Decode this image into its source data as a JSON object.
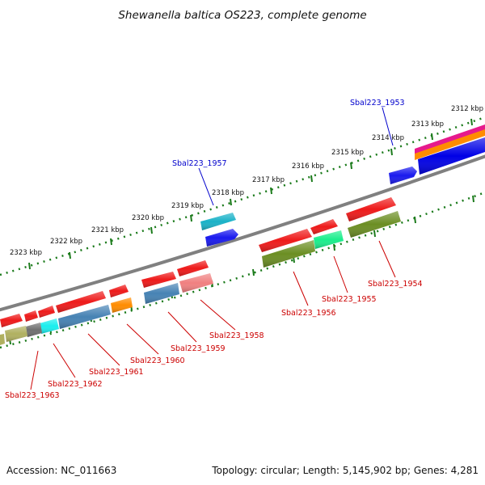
{
  "title": "Shewanella baltica OS223, complete genome",
  "footer": {
    "accession": "Accession: NC_011663",
    "summary": "Topology: circular; Length: 5,145,902 bp; Genes: 4,281"
  },
  "ticks": [
    "2312 kbp",
    "2313 kbp",
    "2314 kbp",
    "2315 kbp",
    "2316 kbp",
    "2317 kbp",
    "2318 kbp",
    "2319 kbp",
    "2320 kbp",
    "2321 kbp",
    "2322 kbp",
    "2323 kbp"
  ],
  "genes": {
    "g1953": "Sbal223_1953",
    "g1954": "Sbal223_1954",
    "g1955": "Sbal223_1955",
    "g1956": "Sbal223_1956",
    "g1957": "Sbal223_1957",
    "g1958": "Sbal223_1958",
    "g1959": "Sbal223_1959",
    "g1960": "Sbal223_1960",
    "g1961": "Sbal223_1961",
    "g1962": "Sbal223_1962",
    "g1963": "Sbal223_1963"
  },
  "colors": {
    "backbone": "#808080",
    "tick": "#1a7a1a",
    "label_blue": "#0000cc",
    "label_red": "#cc0000"
  }
}
